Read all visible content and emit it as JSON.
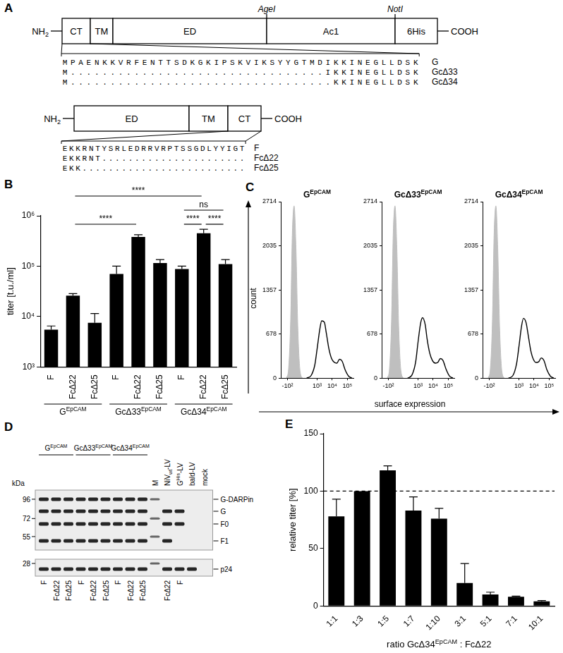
{
  "panel_letters": [
    "A",
    "B",
    "C",
    "D",
    "E"
  ],
  "constructs": [
    {
      "n_term": [
        "NH",
        {
          "sub": "2"
        }
      ],
      "c_term": "COOH",
      "domains": [
        "CT",
        "TM",
        "ED",
        "Ac1",
        "6His"
      ],
      "sites": [
        {
          "label": "AgeI",
          "boundary": 3
        },
        {
          "label": "NotI",
          "boundary": 4
        }
      ],
      "zoom_domain": 0,
      "sequences": [
        {
          "seq": "MPAENKKVRFENTTSDKGKIPSKVIKSYYGTMDIKKINEGLLDSK",
          "name": "G"
        },
        {
          "seq": "M................................IKKINEGLLDSK",
          "name": "GcΔ33"
        },
        {
          "seq": "M.................................KKINEGLLDSK",
          "name": "GcΔ34"
        }
      ]
    },
    {
      "n_term": [
        "NH",
        {
          "sub": "2"
        }
      ],
      "c_term": "COOH",
      "domains": [
        "ED",
        "TM",
        "CT"
      ],
      "sites": [],
      "zoom_domain": 2,
      "sequences": [
        {
          "seq": "EKKRNTYSRLEDRRVRPTSSGDLYYIGT",
          "name": "F"
        },
        {
          "seq": "EKKRNT......................",
          "name": "FcΔ22"
        },
        {
          "seq": "EKK.........................",
          "name": "FcΔ25"
        }
      ]
    }
  ],
  "chart_data": [
    {
      "type": "bar",
      "y_label": "titer [t.u./ml]",
      "categories": [
        "F",
        "FcΔ22",
        "FcΔ25",
        "F",
        "FcΔ22",
        "FcΔ25",
        "F",
        "FcΔ22",
        "FcΔ25"
      ],
      "values": [
        5500,
        26000,
        7500,
        70000,
        380000,
        115000,
        88000,
        450000,
        110000
      ],
      "errors": [
        1000,
        2500,
        4000,
        30000,
        40000,
        20000,
        12000,
        90000,
        25000
      ],
      "color": "#000000",
      "log": "y",
      "ylim": [
        1000,
        1000000
      ],
      "yticks": [
        {
          "value": 1000,
          "label": "10³"
        },
        {
          "value": 10000,
          "label": "10⁴"
        },
        {
          "value": 100000,
          "label": "10⁵"
        },
        {
          "value": 1000000,
          "label": "10⁶"
        }
      ],
      "grid": false,
      "groups": [
        {
          "label": [
            "G",
            {
              "sup": "EpCAM"
            }
          ],
          "from": 0,
          "to": 2
        },
        {
          "label": [
            "GcΔ33",
            {
              "sup": "EpCAM"
            }
          ],
          "from": 3,
          "to": 5
        },
        {
          "label": [
            "GcΔ34",
            {
              "sup": "EpCAM"
            }
          ],
          "from": 6,
          "to": 8
        }
      ],
      "comparisons": [
        {
          "from": 1,
          "to": 7,
          "label": "****"
        },
        {
          "from": 1,
          "to": 4,
          "label": "****"
        },
        {
          "from": 6,
          "to": 8,
          "label": "ns"
        },
        {
          "from": 6,
          "to": 7,
          "label": "****"
        },
        {
          "from": 7,
          "to": 8,
          "label": "****"
        }
      ]
    },
    {
      "type": "line",
      "title": [
        "G",
        {
          "sup": "EpCAM"
        }
      ],
      "log": "x",
      "xlim": [
        -300,
        250000
      ],
      "xticks": [
        {
          "value": -100,
          "label": "-10²"
        },
        {
          "value": 1000,
          "label": "10³"
        },
        {
          "value": 10000,
          "label": "10⁴"
        },
        {
          "value": 100000,
          "label": "10⁵"
        }
      ],
      "ylim": [
        0,
        2714
      ],
      "yticks": [
        0,
        678,
        1357,
        2035,
        2714
      ],
      "grid": false,
      "series": [
        {
          "type": "area",
          "color": "#bfbfbf",
          "x": [
            -120,
            -80,
            -50,
            -30,
            -10,
            10,
            30,
            60,
            100
          ],
          "values": [
            0,
            150,
            900,
            2200,
            2650,
            2000,
            800,
            100,
            0
          ]
        },
        {
          "type": "line",
          "color": "#000000",
          "x": [
            200,
            400,
            700,
            1000,
            1500,
            2000,
            3000,
            4000,
            6000,
            9000,
            14000,
            20000,
            30000,
            45000,
            70000,
            120000,
            200000
          ],
          "values": [
            0,
            40,
            200,
            450,
            750,
            880,
            860,
            700,
            450,
            300,
            240,
            230,
            290,
            260,
            130,
            30,
            0
          ]
        }
      ]
    },
    {
      "type": "line",
      "title": [
        "GcΔ33",
        {
          "sup": "EpCAM"
        }
      ],
      "log": "x",
      "xlim": [
        -300,
        250000
      ],
      "xticks": [
        {
          "value": -100,
          "label": "-10²"
        },
        {
          "value": 1000,
          "label": "10³"
        },
        {
          "value": 10000,
          "label": "10⁴"
        },
        {
          "value": 100000,
          "label": "10⁵"
        }
      ],
      "ylim": [
        0,
        2714
      ],
      "yticks": [
        0,
        678,
        1357,
        2035,
        2714
      ],
      "grid": false,
      "series": [
        {
          "type": "area",
          "color": "#bfbfbf",
          "x": [
            -120,
            -80,
            -50,
            -30,
            -10,
            10,
            30,
            60,
            100
          ],
          "values": [
            0,
            150,
            900,
            2200,
            2650,
            2000,
            800,
            100,
            0
          ]
        },
        {
          "type": "line",
          "color": "#000000",
          "x": [
            200,
            400,
            700,
            1000,
            1500,
            2000,
            3000,
            4000,
            6000,
            9000,
            14000,
            20000,
            30000,
            45000,
            70000,
            120000,
            200000
          ],
          "values": [
            0,
            50,
            250,
            550,
            850,
            930,
            820,
            600,
            380,
            270,
            230,
            240,
            300,
            270,
            140,
            30,
            0
          ]
        }
      ]
    },
    {
      "type": "line",
      "title": [
        "GcΔ34",
        {
          "sup": "EpCAM"
        }
      ],
      "log": "x",
      "xlim": [
        -300,
        250000
      ],
      "xticks": [
        {
          "value": -100,
          "label": "-10²"
        },
        {
          "value": 1000,
          "label": "10³"
        },
        {
          "value": 10000,
          "label": "10⁴"
        },
        {
          "value": 100000,
          "label": "10⁵"
        }
      ],
      "ylim": [
        0,
        2714
      ],
      "yticks": [
        0,
        678,
        1357,
        2035,
        2714
      ],
      "grid": false,
      "series": [
        {
          "type": "area",
          "color": "#bfbfbf",
          "x": [
            -120,
            -80,
            -50,
            -30,
            -10,
            10,
            30,
            60,
            100
          ],
          "values": [
            0,
            150,
            900,
            2200,
            2650,
            2000,
            800,
            100,
            0
          ]
        },
        {
          "type": "line",
          "color": "#000000",
          "x": [
            200,
            400,
            700,
            1000,
            1500,
            2000,
            3000,
            4000,
            6000,
            9000,
            14000,
            20000,
            30000,
            45000,
            70000,
            120000,
            200000
          ],
          "values": [
            0,
            40,
            220,
            480,
            800,
            920,
            850,
            680,
            430,
            290,
            240,
            250,
            310,
            270,
            130,
            30,
            0
          ]
        }
      ]
    },
    {
      "type": "bar",
      "y_label": "relative titer [%]",
      "x_label": [
        "ratio GcΔ34",
        {
          "sup": "EpCAM"
        },
        " : FcΔ22"
      ],
      "categories": [
        "1:1",
        "1:3",
        "1:5",
        "1:7",
        "1:10",
        "3:1",
        "5:1",
        "7:1",
        "10:1"
      ],
      "values": [
        78,
        100,
        118,
        83,
        76,
        20,
        10,
        8,
        4
      ],
      "errors": [
        15,
        0,
        4,
        12,
        9,
        17,
        2,
        0.5,
        0.7
      ],
      "color": "#000000",
      "ylim": [
        0,
        150
      ],
      "yticks": [
        0,
        50,
        100,
        150
      ],
      "grid": false,
      "reference_line": 100
    }
  ],
  "panel_c": {
    "y_label": "count",
    "x_label": "surface expression"
  },
  "blot": {
    "kda_label": "kDa",
    "markers_top": [
      96,
      72,
      55
    ],
    "markers_bottom": [
      28
    ],
    "band_labels_top": [
      "G-DARPin",
      "G",
      "F0",
      "F1"
    ],
    "band_labels_bottom": [
      "p24"
    ],
    "groups": [
      {
        "label": [
          "G",
          {
            "sup": "EpCAM"
          }
        ],
        "from": 0,
        "to": 2
      },
      {
        "label": [
          "GcΔ33",
          {
            "sup": "EpCAM"
          }
        ],
        "from": 3,
        "to": 5
      },
      {
        "label": [
          "GcΔ34",
          {
            "sup": "EpCAM"
          }
        ],
        "from": 6,
        "to": 8
      }
    ],
    "lanes": [
      {
        "top": null,
        "bottom": "F",
        "bands": [
          "G-DARPin",
          "G",
          "F0",
          "F1",
          "p24"
        ]
      },
      {
        "top": null,
        "bottom": "FcΔ22",
        "bands": [
          "G-DARPin",
          "G",
          "F0",
          "F1",
          "p24"
        ]
      },
      {
        "top": null,
        "bottom": "FcΔ25",
        "bands": [
          "G-DARPin",
          "G",
          "F0",
          "F1",
          "p24"
        ]
      },
      {
        "top": null,
        "bottom": "F",
        "bands": [
          "G-DARPin",
          "G",
          "F0",
          "F1",
          "p24"
        ]
      },
      {
        "top": null,
        "bottom": "FcΔ22",
        "bands": [
          "G-DARPin",
          "G",
          "F0",
          "F1",
          "p24"
        ]
      },
      {
        "top": null,
        "bottom": "FcΔ25",
        "bands": [
          "G-DARPin",
          "G",
          "F0",
          "F1",
          "p24"
        ]
      },
      {
        "top": null,
        "bottom": "F",
        "bands": [
          "G-DARPin",
          "G",
          "F0",
          "F1",
          "p24"
        ]
      },
      {
        "top": null,
        "bottom": "FcΔ22",
        "bands": [
          "G-DARPin",
          "G",
          "F0",
          "F1",
          "p24"
        ]
      },
      {
        "top": null,
        "bottom": "FcΔ25",
        "bands": [
          "G-DARPin",
          "G",
          "F0",
          "F1",
          "p24"
        ]
      },
      {
        "top": "M",
        "bottom": null,
        "bands": [
          96,
          72,
          55,
          28
        ]
      },
      {
        "top": [
          "NiV",
          {
            "sub": "wt"
          },
          "-LV"
        ],
        "bottom": "FcΔ22",
        "bands": [
          "G",
          "F0",
          "F1",
          "p24"
        ]
      },
      {
        "top": [
          "G",
          {
            "sup": "His"
          },
          "-LV"
        ],
        "bottom": "F",
        "bands": [
          "G",
          "F0",
          "p24"
        ]
      },
      {
        "top": "bald-LV",
        "bottom": null,
        "bands": [
          "p24"
        ]
      },
      {
        "top": "mock",
        "bottom": null,
        "bands": []
      }
    ]
  }
}
